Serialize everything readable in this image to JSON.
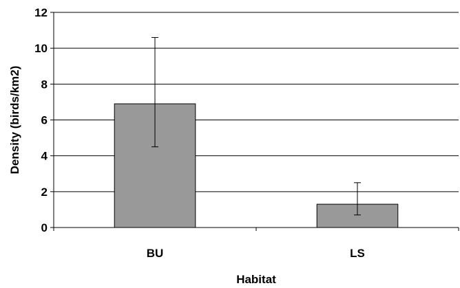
{
  "chart_data": {
    "type": "bar",
    "title": "",
    "xlabel": "Habitat",
    "ylabel": "Density (birds/km2)",
    "categories": [
      "BU",
      "LS"
    ],
    "values": [
      6.9,
      1.3
    ],
    "error_upper": [
      10.6,
      2.5
    ],
    "error_lower": [
      4.5,
      0.7
    ],
    "ylim": [
      0,
      12
    ],
    "yticks": [
      0,
      2,
      4,
      6,
      8,
      10,
      12
    ],
    "grid": true,
    "legend": "none",
    "bar_color": "#999999",
    "bar_edge_color": "#000000"
  }
}
